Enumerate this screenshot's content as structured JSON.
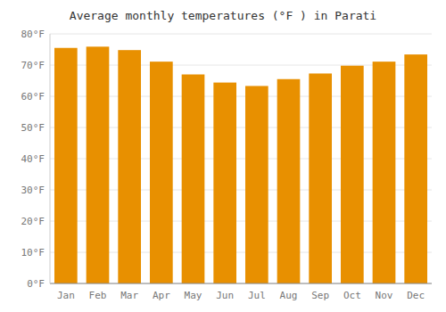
{
  "chart_data": {
    "type": "bar",
    "title": "Average monthly temperatures (°F ) in Parati",
    "categories": [
      "Jan",
      "Feb",
      "Mar",
      "Apr",
      "May",
      "Jun",
      "Jul",
      "Aug",
      "Sep",
      "Oct",
      "Nov",
      "Dec"
    ],
    "values": [
      75.5,
      75.9,
      74.8,
      71.1,
      67.0,
      64.4,
      63.3,
      65.5,
      67.3,
      69.8,
      71.1,
      73.4
    ],
    "color": "#E89000",
    "ylim": [
      0,
      80
    ],
    "yticks": [
      {
        "value": 0,
        "label": "0°F"
      },
      {
        "value": 10,
        "label": "10°F"
      },
      {
        "value": 20,
        "label": "20°F"
      },
      {
        "value": 30,
        "label": "30°F"
      },
      {
        "value": 40,
        "label": "40°F"
      },
      {
        "value": 50,
        "label": "50°F"
      },
      {
        "value": 60,
        "label": "60°F"
      },
      {
        "value": 70,
        "label": "70°F"
      },
      {
        "value": 80,
        "label": "80°F"
      }
    ],
    "grid": true
  }
}
